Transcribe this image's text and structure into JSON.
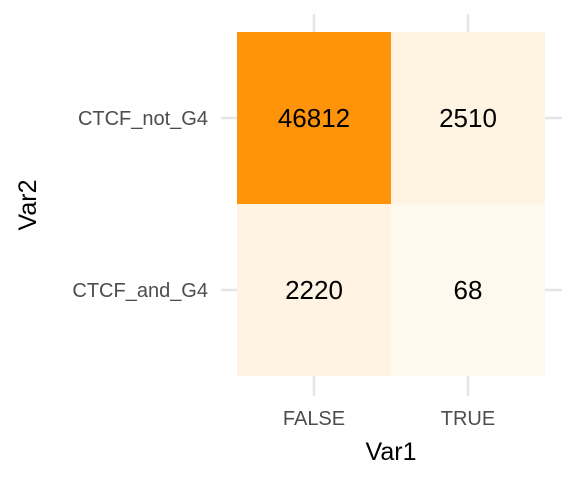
{
  "chart_data": {
    "type": "heatmap",
    "xlabel": "Var1",
    "ylabel": "Var2",
    "x_categories": [
      "FALSE",
      "TRUE"
    ],
    "y_categories": [
      "CTCF_not_G4",
      "CTCF_and_G4"
    ],
    "cells": [
      {
        "x": "FALSE",
        "y": "CTCF_not_G4",
        "value": 46812
      },
      {
        "x": "TRUE",
        "y": "CTCF_not_G4",
        "value": 2510
      },
      {
        "x": "FALSE",
        "y": "CTCF_and_G4",
        "value": 2220
      },
      {
        "x": "TRUE",
        "y": "CTCF_and_G4",
        "value": 68
      }
    ],
    "color_low": "#FFF8EE",
    "color_high": "#FF9309",
    "grid": true,
    "legend": "none"
  }
}
